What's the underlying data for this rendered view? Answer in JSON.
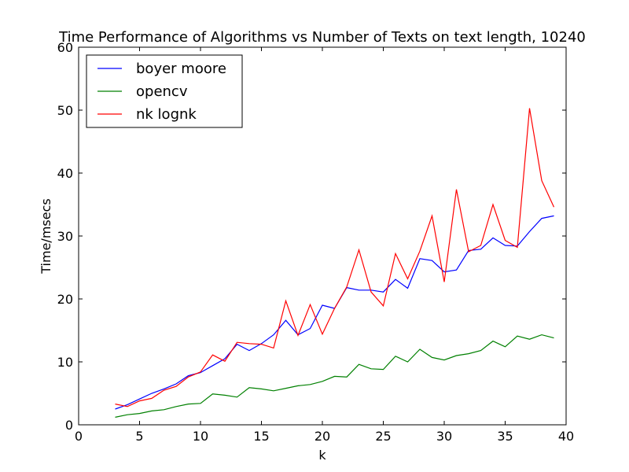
{
  "chart_data": {
    "type": "line",
    "title": "Time Performance of Algorithms vs Number of Texts on text length, 10240",
    "xlabel": "k",
    "ylabel": "Time/msecs",
    "xlim": [
      0,
      40
    ],
    "ylim": [
      0,
      60
    ],
    "xticks": [
      0,
      5,
      10,
      15,
      20,
      25,
      30,
      35,
      40
    ],
    "yticks": [
      0,
      10,
      20,
      30,
      40,
      50,
      60
    ],
    "grid": false,
    "legend_position": "top-left",
    "x": [
      3,
      4,
      5,
      6,
      7,
      8,
      9,
      10,
      11,
      12,
      13,
      14,
      15,
      16,
      17,
      18,
      19,
      20,
      21,
      22,
      23,
      24,
      25,
      26,
      27,
      28,
      29,
      30,
      31,
      32,
      33,
      34,
      35,
      36,
      37,
      38,
      39
    ],
    "series": [
      {
        "name": "boyer moore",
        "color": "#0000ff",
        "values": [
          2.5,
          3.2,
          4.1,
          5.0,
          5.7,
          6.5,
          7.8,
          8.3,
          9.4,
          10.5,
          12.8,
          11.8,
          12.9,
          14.3,
          16.6,
          14.3,
          15.3,
          19.0,
          18.5,
          21.8,
          21.4,
          21.4,
          21.1,
          23.1,
          21.7,
          26.4,
          26.1,
          24.3,
          24.6,
          27.7,
          27.9,
          29.7,
          28.5,
          28.4,
          30.7,
          32.8,
          33.2
        ]
      },
      {
        "name": "opencv",
        "color": "#008000",
        "values": [
          1.2,
          1.6,
          1.8,
          2.2,
          2.4,
          2.9,
          3.3,
          3.4,
          4.9,
          4.7,
          4.4,
          5.9,
          5.7,
          5.4,
          5.8,
          6.2,
          6.4,
          6.9,
          7.7,
          7.6,
          9.6,
          8.9,
          8.8,
          10.9,
          10.0,
          12.0,
          10.7,
          10.3,
          11.0,
          11.3,
          11.8,
          13.3,
          12.4,
          14.1,
          13.6,
          14.3,
          13.8
        ]
      },
      {
        "name": "nk lognk",
        "color": "#ff0000",
        "values": [
          3.3,
          2.9,
          3.8,
          4.2,
          5.5,
          6.1,
          7.6,
          8.4,
          11.1,
          10.1,
          13.1,
          12.9,
          12.8,
          12.2,
          19.7,
          14.2,
          19.1,
          14.4,
          18.5,
          21.9,
          27.8,
          21.1,
          18.9,
          27.2,
          23.2,
          27.6,
          33.2,
          22.7,
          37.4,
          27.5,
          28.5,
          35.0,
          29.3,
          28.2,
          50.3,
          38.8,
          34.6
        ]
      }
    ]
  }
}
